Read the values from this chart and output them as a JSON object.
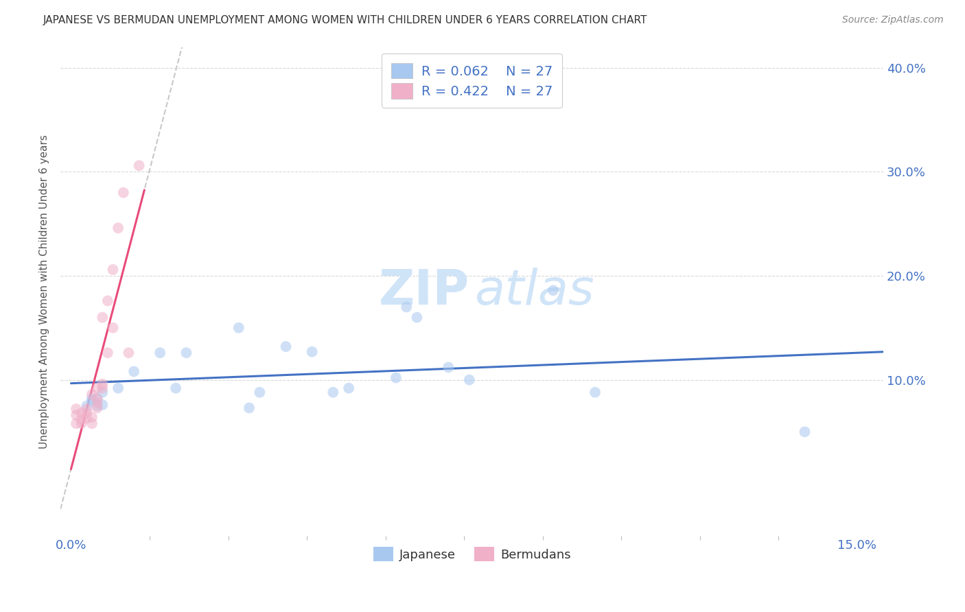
{
  "title": "JAPANESE VS BERMUDAN UNEMPLOYMENT AMONG WOMEN WITH CHILDREN UNDER 6 YEARS CORRELATION CHART",
  "source": "Source: ZipAtlas.com",
  "ylabel": "Unemployment Among Women with Children Under 6 years",
  "legend_labels": [
    "Japanese",
    "Bermudans"
  ],
  "legend_r": [
    "R = 0.062",
    "R = 0.422"
  ],
  "legend_n": [
    "N = 27",
    "N = 27"
  ],
  "xlim": [
    -0.002,
    0.155
  ],
  "ylim": [
    -0.05,
    0.42
  ],
  "xtick_positions": [
    0.0,
    0.15
  ],
  "xticklabels": [
    "0.0%",
    "15.0%"
  ],
  "ytick_positions": [
    0.1,
    0.2,
    0.3,
    0.4
  ],
  "yticklabels_right": [
    "10.0%",
    "20.0%",
    "30.0%",
    "40.0%"
  ],
  "grid_yticks": [
    0.1,
    0.2,
    0.3,
    0.4
  ],
  "japanese_x": [
    0.003,
    0.004,
    0.004,
    0.005,
    0.005,
    0.006,
    0.006,
    0.009,
    0.012,
    0.017,
    0.02,
    0.022,
    0.032,
    0.034,
    0.036,
    0.041,
    0.046,
    0.05,
    0.053,
    0.062,
    0.064,
    0.066,
    0.072,
    0.076,
    0.092,
    0.1,
    0.14
  ],
  "japanese_y": [
    0.075,
    0.08,
    0.082,
    0.075,
    0.082,
    0.076,
    0.088,
    0.092,
    0.108,
    0.126,
    0.092,
    0.126,
    0.15,
    0.073,
    0.088,
    0.132,
    0.127,
    0.088,
    0.092,
    0.102,
    0.17,
    0.16,
    0.112,
    0.1,
    0.186,
    0.088,
    0.05
  ],
  "bermudan_x": [
    0.001,
    0.001,
    0.001,
    0.002,
    0.002,
    0.002,
    0.003,
    0.003,
    0.003,
    0.004,
    0.004,
    0.004,
    0.005,
    0.005,
    0.005,
    0.005,
    0.006,
    0.006,
    0.006,
    0.007,
    0.007,
    0.008,
    0.008,
    0.009,
    0.01,
    0.011,
    0.013
  ],
  "bermudan_y": [
    0.058,
    0.066,
    0.072,
    0.058,
    0.062,
    0.068,
    0.063,
    0.068,
    0.072,
    0.058,
    0.064,
    0.086,
    0.073,
    0.078,
    0.082,
    0.092,
    0.092,
    0.096,
    0.16,
    0.126,
    0.176,
    0.15,
    0.206,
    0.246,
    0.28,
    0.126,
    0.306
  ],
  "japanese_color": "#a8c8f0",
  "bermudan_color": "#f0b0c8",
  "japanese_line_color": "#4472c4",
  "bermudan_line_color": "#e84b7a",
  "trend_dash_color": "#c8c8c8",
  "background_color": "#ffffff",
  "grid_color": "#d8d8d8",
  "title_color": "#333333",
  "axis_label_color": "#4472c4",
  "ylabel_color": "#555555",
  "marker_size": 130,
  "marker_alpha": 0.55,
  "watermark_text_zip": "ZIP",
  "watermark_text_atlas": "atlas",
  "watermark_color": "#d0e4f8"
}
